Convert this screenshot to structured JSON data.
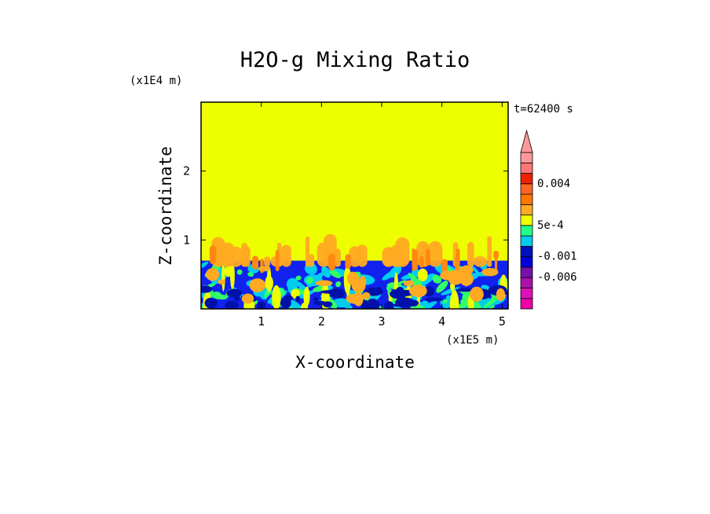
{
  "chart_data": {
    "type": "heatmap",
    "title": "H2O-g Mixing Ratio",
    "xlabel": "X-coordinate",
    "ylabel": "Z-coordinate",
    "x_multiplier": "(x1E5 m)",
    "y_multiplier": "(x1E4 m)",
    "time_label": "t=62400 s",
    "xlim": [
      0,
      5.1
    ],
    "ylim": [
      0,
      3.0
    ],
    "x_ticks": [
      1,
      2,
      3,
      4,
      5
    ],
    "y_ticks": [
      1,
      2
    ],
    "x_tick_labels": [
      "1",
      "2",
      "3",
      "4",
      "5"
    ],
    "y_tick_labels": [
      "1",
      "2"
    ],
    "background_color": "#eeff00",
    "boundary_layer_top": 0.7,
    "colorbar": {
      "colors": [
        "#ee00aa",
        "#dd11bb",
        "#aa11aa",
        "#7711aa",
        "#0000dd",
        "#0011bb",
        "#00ccee",
        "#22ff88",
        "#eeff00",
        "#ffaa22",
        "#ff7700",
        "#ff6622",
        "#ee2200",
        "#ff7777",
        "#ff9999"
      ],
      "labels": [
        "-0.006",
        "-0.001",
        "5e-4",
        "0.004"
      ],
      "extend_max": true
    },
    "field_colors": {
      "dry": "#1122ee",
      "dry_dark": "#0011aa",
      "cyan": "#00ccee",
      "green": "#33ff66",
      "orange": "#ffaa22",
      "dark_orange": "#ff8811"
    }
  }
}
